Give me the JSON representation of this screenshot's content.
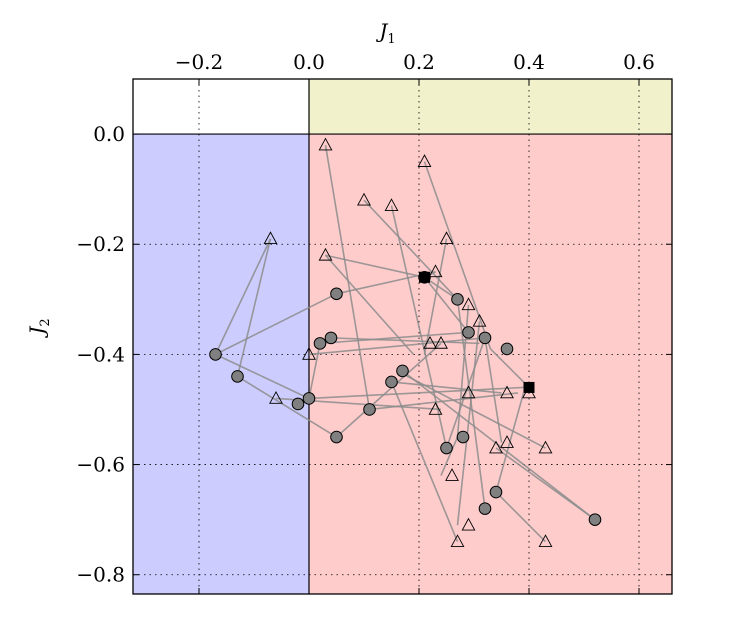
{
  "chart_data": {
    "type": "scatter",
    "title": "",
    "xlabel": "J",
    "xlabel_sub": "1",
    "ylabel": "J",
    "ylabel_sub": "2",
    "xlim": [
      -0.32,
      0.66
    ],
    "ylim": [
      -0.835,
      0.1
    ],
    "x_axis_position": "top",
    "x_ticks": [
      -0.2,
      0.0,
      0.2,
      0.4,
      0.6
    ],
    "x_tick_labels": [
      "−0.2",
      "0.0",
      "0.2",
      "0.4",
      "0.6"
    ],
    "y_ticks": [
      0.0,
      -0.2,
      -0.4,
      -0.6,
      -0.8
    ],
    "y_tick_labels": [
      "0.0",
      "−0.2",
      "−0.4",
      "−0.6",
      "−0.8"
    ],
    "grid": true,
    "regions": [
      {
        "x": [
          -0.32,
          0.0
        ],
        "y": [
          -0.835,
          0.0
        ],
        "color": "#ccccff"
      },
      {
        "x": [
          0.0,
          0.66
        ],
        "y": [
          -0.835,
          0.0
        ],
        "color": "#ffcccc"
      },
      {
        "x": [
          0.0,
          0.66
        ],
        "y": [
          0.0,
          0.1
        ],
        "color": "#f1f1cc"
      }
    ],
    "segments": [
      [
        [
          0.23,
          -0.25
        ],
        [
          0.05,
          -0.29
        ]
      ],
      [
        [
          0.05,
          -0.29
        ],
        [
          -0.17,
          -0.4
        ]
      ],
      [
        [
          -0.17,
          -0.4
        ],
        [
          -0.07,
          -0.19
        ]
      ],
      [
        [
          -0.07,
          -0.19
        ],
        [
          -0.13,
          -0.44
        ]
      ],
      [
        [
          -0.17,
          -0.4
        ],
        [
          0.0,
          -0.48
        ]
      ],
      [
        [
          -0.13,
          -0.44
        ],
        [
          0.05,
          -0.55
        ]
      ],
      [
        [
          0.05,
          -0.55
        ],
        [
          0.24,
          -0.38
        ]
      ],
      [
        [
          0.0,
          -0.48
        ],
        [
          0.02,
          -0.38
        ]
      ],
      [
        [
          0.02,
          -0.38
        ],
        [
          0.29,
          -0.36
        ]
      ],
      [
        [
          0.04,
          -0.37
        ],
        [
          0.31,
          -0.38
        ]
      ],
      [
        [
          0.03,
          -0.02
        ],
        [
          0.11,
          -0.5
        ]
      ],
      [
        [
          0.11,
          -0.5
        ],
        [
          0.38,
          -0.47
        ]
      ],
      [
        [
          0.03,
          -0.22
        ],
        [
          0.21,
          -0.26
        ]
      ],
      [
        [
          0.21,
          -0.26
        ],
        [
          0.29,
          -0.36
        ]
      ],
      [
        [
          0.1,
          -0.12
        ],
        [
          0.27,
          -0.3
        ]
      ],
      [
        [
          0.15,
          -0.13
        ],
        [
          0.25,
          -0.57
        ]
      ],
      [
        [
          0.21,
          -0.05
        ],
        [
          0.33,
          -0.39
        ]
      ],
      [
        [
          0.33,
          -0.39
        ],
        [
          0.4,
          -0.46
        ]
      ],
      [
        [
          0.25,
          -0.19
        ],
        [
          0.21,
          -0.4
        ]
      ],
      [
        [
          0.27,
          -0.3
        ],
        [
          0.32,
          -0.68
        ]
      ],
      [
        [
          0.29,
          -0.31
        ],
        [
          0.27,
          -0.55
        ]
      ],
      [
        [
          0.31,
          -0.34
        ],
        [
          0.27,
          -0.71
        ]
      ],
      [
        [
          0.27,
          -0.55
        ],
        [
          0.24,
          -0.62
        ]
      ],
      [
        [
          0.15,
          -0.45
        ],
        [
          0.27,
          -0.74
        ]
      ],
      [
        [
          0.17,
          -0.43
        ],
        [
          0.52,
          -0.7
        ]
      ],
      [
        [
          0.52,
          -0.7
        ],
        [
          0.34,
          -0.57
        ]
      ],
      [
        [
          0.34,
          -0.65
        ],
        [
          0.39,
          -0.47
        ]
      ],
      [
        [
          0.34,
          -0.65
        ],
        [
          0.43,
          -0.74
        ]
      ],
      [
        [
          0.16,
          -0.43
        ],
        [
          0.43,
          -0.57
        ]
      ],
      [
        [
          0.0,
          -0.48
        ],
        [
          0.39,
          -0.46
        ]
      ],
      [
        [
          -0.06,
          -0.48
        ],
        [
          0.24,
          -0.5
        ]
      ],
      [
        [
          0.25,
          -0.57
        ],
        [
          0.32,
          -0.37
        ]
      ],
      [
        [
          0.32,
          -0.37
        ],
        [
          0.35,
          -0.56
        ]
      ],
      [
        [
          0.27,
          -0.3
        ],
        [
          0.21,
          -0.26
        ]
      ],
      [
        [
          0.21,
          -0.26
        ],
        [
          0.23,
          -0.25
        ]
      ],
      [
        [
          0.0,
          -0.4
        ],
        [
          0.32,
          -0.37
        ]
      ],
      [
        [
          0.03,
          -0.22
        ],
        [
          0.19,
          -0.4
        ]
      ],
      [
        [
          0.15,
          -0.45
        ],
        [
          0.35,
          -0.47
        ]
      ]
    ],
    "circles": [
      {
        "x": 0.05,
        "y": -0.29
      },
      {
        "x": -0.17,
        "y": -0.4
      },
      {
        "x": -0.13,
        "y": -0.44
      },
      {
        "x": 0.0,
        "y": -0.48
      },
      {
        "x": -0.02,
        "y": -0.49
      },
      {
        "x": 0.02,
        "y": -0.38
      },
      {
        "x": 0.04,
        "y": -0.37
      },
      {
        "x": 0.05,
        "y": -0.55
      },
      {
        "x": 0.11,
        "y": -0.5
      },
      {
        "x": 0.15,
        "y": -0.45
      },
      {
        "x": 0.17,
        "y": -0.43
      },
      {
        "x": 0.21,
        "y": -0.26
      },
      {
        "x": 0.27,
        "y": -0.3
      },
      {
        "x": 0.29,
        "y": -0.36
      },
      {
        "x": 0.32,
        "y": -0.37
      },
      {
        "x": 0.36,
        "y": -0.39
      },
      {
        "x": 0.25,
        "y": -0.57
      },
      {
        "x": 0.28,
        "y": -0.55
      },
      {
        "x": 0.32,
        "y": -0.68
      },
      {
        "x": 0.34,
        "y": -0.65
      },
      {
        "x": 0.52,
        "y": -0.7
      }
    ],
    "triangles": [
      {
        "x": 0.03,
        "y": -0.02
      },
      {
        "x": 0.21,
        "y": -0.05
      },
      {
        "x": 0.1,
        "y": -0.12
      },
      {
        "x": 0.15,
        "y": -0.13
      },
      {
        "x": 0.25,
        "y": -0.19
      },
      {
        "x": -0.07,
        "y": -0.19
      },
      {
        "x": 0.03,
        "y": -0.22
      },
      {
        "x": 0.23,
        "y": -0.25
      },
      {
        "x": 0.29,
        "y": -0.31
      },
      {
        "x": 0.31,
        "y": -0.34
      },
      {
        "x": 0.22,
        "y": -0.38
      },
      {
        "x": 0.24,
        "y": -0.38
      },
      {
        "x": 0.0,
        "y": -0.4
      },
      {
        "x": -0.06,
        "y": -0.48
      },
      {
        "x": 0.29,
        "y": -0.47
      },
      {
        "x": 0.36,
        "y": -0.47
      },
      {
        "x": 0.4,
        "y": -0.47
      },
      {
        "x": 0.23,
        "y": -0.5
      },
      {
        "x": 0.36,
        "y": -0.56
      },
      {
        "x": 0.34,
        "y": -0.57
      },
      {
        "x": 0.43,
        "y": -0.57
      },
      {
        "x": 0.26,
        "y": -0.62
      },
      {
        "x": 0.29,
        "y": -0.71
      },
      {
        "x": 0.27,
        "y": -0.74
      },
      {
        "x": 0.43,
        "y": -0.74
      }
    ],
    "squares": [
      {
        "x": 0.21,
        "y": -0.26
      },
      {
        "x": 0.4,
        "y": -0.46
      }
    ],
    "colors": {
      "line": "#8c8c8c",
      "circle_fill": "#808080",
      "marker_edge": "#000000",
      "square_fill": "#000000",
      "grid": "#000000"
    }
  }
}
